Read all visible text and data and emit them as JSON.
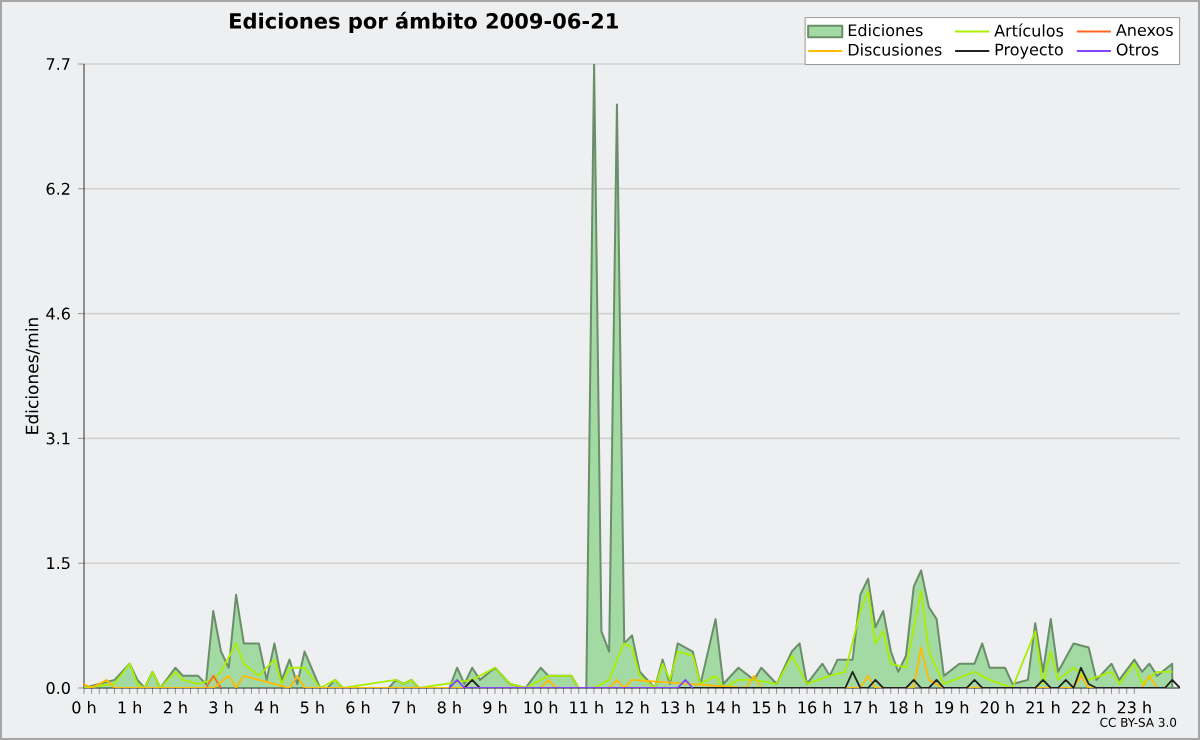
{
  "chart_data": {
    "type": "line",
    "title": "Ediciones por ámbito  2009-06-21",
    "ylabel": "Ediciones/min",
    "xlim": [
      0,
      24
    ],
    "ylim": [
      0,
      7.7
    ],
    "xticks": [
      {
        "value": 0,
        "label": "0 h"
      },
      {
        "value": 1,
        "label": "1 h"
      },
      {
        "value": 2,
        "label": "2 h"
      },
      {
        "value": 3,
        "label": "3 h"
      },
      {
        "value": 4,
        "label": "4 h"
      },
      {
        "value": 5,
        "label": "5 h"
      },
      {
        "value": 6,
        "label": "6 h"
      },
      {
        "value": 7,
        "label": "7 h"
      },
      {
        "value": 8,
        "label": "8 h"
      },
      {
        "value": 9,
        "label": "9 h"
      },
      {
        "value": 10,
        "label": "10 h"
      },
      {
        "value": 11,
        "label": "11 h"
      },
      {
        "value": 12,
        "label": "12 h"
      },
      {
        "value": 13,
        "label": "13 h"
      },
      {
        "value": 14,
        "label": "14 h"
      },
      {
        "value": 15,
        "label": "15 h"
      },
      {
        "value": 16,
        "label": "16 h"
      },
      {
        "value": 17,
        "label": "17 h"
      },
      {
        "value": 18,
        "label": "18 h"
      },
      {
        "value": 19,
        "label": "19 h"
      },
      {
        "value": 20,
        "label": "20 h"
      },
      {
        "value": 21,
        "label": "21 h"
      },
      {
        "value": 22,
        "label": "22 h"
      },
      {
        "value": 23,
        "label": "23 h"
      }
    ],
    "yticks": [
      {
        "value": 0,
        "label": "0.0"
      },
      {
        "value": 1.54,
        "label": "1.5"
      },
      {
        "value": 3.08,
        "label": "3.1"
      },
      {
        "value": 4.62,
        "label": "4.6"
      },
      {
        "value": 6.16,
        "label": "6.2"
      },
      7.7
    ],
    "grid": "y",
    "legend": "top right",
    "annotations": [
      "CC BY-SA 3.0"
    ],
    "series": [
      {
        "name": "Ediciones",
        "type": "area",
        "color": "#a3d9a3",
        "x": [
          0,
          0.33,
          0.67,
          1.0,
          1.17,
          1.33,
          1.5,
          1.67,
          2.0,
          2.17,
          2.5,
          2.67,
          2.83,
          3.0,
          3.17,
          3.33,
          3.5,
          3.83,
          4.0,
          4.17,
          4.33,
          4.5,
          4.67,
          4.83,
          5.17,
          5.33,
          5.5,
          5.67,
          6.67,
          6.83,
          7.0,
          7.17,
          7.33,
          8.0,
          8.17,
          8.33,
          8.5,
          8.67,
          9.0,
          9.33,
          9.67,
          10.0,
          10.17,
          10.67,
          10.83,
          11.0,
          11.17,
          11.33,
          11.5,
          11.67,
          11.83,
          12.0,
          12.17,
          12.5,
          12.67,
          12.83,
          13.0,
          13.33,
          13.5,
          13.83,
          14.0,
          14.33,
          14.67,
          14.83,
          15.17,
          15.5,
          15.67,
          15.83,
          16.17,
          16.33,
          16.5,
          16.83,
          17.0,
          17.17,
          17.33,
          17.5,
          17.67,
          17.83,
          18.0,
          18.17,
          18.33,
          18.5,
          18.67,
          18.83,
          19.17,
          19.5,
          19.67,
          19.83,
          20.17,
          20.33,
          20.67,
          20.83,
          21.0,
          21.17,
          21.33,
          21.67,
          22.0,
          22.17,
          22.5,
          22.67,
          23.0,
          23.17,
          23.33,
          23.5,
          23.83
        ],
        "values": [
          0,
          0.05,
          0.1,
          0.3,
          0.1,
          0,
          0.2,
          0,
          0.25,
          0.15,
          0.15,
          0.05,
          0.95,
          0.45,
          0.25,
          1.15,
          0.55,
          0.55,
          0.1,
          0.55,
          0.1,
          0.35,
          0.05,
          0.45,
          0,
          0,
          0.1,
          0,
          0,
          0.1,
          0.05,
          0.1,
          0,
          0,
          0.25,
          0.05,
          0.25,
          0.1,
          0.25,
          0.05,
          0,
          0.25,
          0.15,
          0.15,
          0,
          0,
          7.7,
          0.7,
          0.45,
          7.2,
          0.55,
          0.65,
          0.2,
          0,
          0.35,
          0.05,
          0.55,
          0.45,
          0.05,
          0.85,
          0.05,
          0.25,
          0.1,
          0.25,
          0.05,
          0.45,
          0.55,
          0.05,
          0.3,
          0.15,
          0.35,
          0.35,
          1.15,
          1.35,
          0.75,
          0.95,
          0.45,
          0.2,
          0.4,
          1.25,
          1.45,
          1.0,
          0.85,
          0.15,
          0.3,
          0.3,
          0.55,
          0.25,
          0.25,
          0.05,
          0.1,
          0.8,
          0.2,
          0.85,
          0.2,
          0.55,
          0.5,
          0.1,
          0.3,
          0.1,
          0.35,
          0.2,
          0.3,
          0.15,
          0.3
        ]
      },
      {
        "name": "Artículos",
        "color": "#aaee00",
        "x": [
          0,
          0.67,
          1.0,
          1.17,
          1.33,
          1.5,
          1.67,
          2.0,
          2.17,
          2.5,
          2.83,
          3.0,
          3.33,
          3.5,
          3.83,
          4.17,
          4.33,
          4.5,
          4.83,
          5.17,
          5.5,
          5.67,
          6.83,
          7.0,
          7.17,
          7.33,
          8.5,
          9.0,
          9.33,
          9.67,
          10.17,
          10.67,
          10.83,
          11.17,
          11.5,
          11.67,
          11.83,
          12.0,
          12.17,
          12.5,
          12.67,
          12.83,
          13.0,
          13.33,
          13.5,
          13.83,
          14.0,
          14.33,
          14.67,
          15.17,
          15.5,
          15.83,
          16.33,
          16.67,
          17.0,
          17.17,
          17.33,
          17.5,
          17.67,
          18.0,
          18.33,
          18.5,
          18.83,
          19.5,
          19.83,
          20.33,
          20.83,
          21.0,
          21.17,
          21.33,
          21.67,
          22.0,
          22.5,
          22.67,
          23.0,
          23.17,
          23.5,
          23.83
        ],
        "values": [
          0,
          0.05,
          0.3,
          0.05,
          0,
          0.2,
          0,
          0.2,
          0.1,
          0.05,
          0.1,
          0.2,
          0.55,
          0.3,
          0.15,
          0.35,
          0.05,
          0.25,
          0.25,
          0,
          0.1,
          0,
          0.1,
          0.05,
          0.1,
          0,
          0.1,
          0.25,
          0.05,
          0,
          0.15,
          0.15,
          0,
          0,
          0.1,
          0.35,
          0.55,
          0.5,
          0.15,
          0,
          0.3,
          0.1,
          0.45,
          0.4,
          0.05,
          0.15,
          0,
          0.1,
          0.1,
          0.05,
          0.4,
          0.05,
          0.15,
          0.2,
          0.95,
          1.2,
          0.55,
          0.7,
          0.3,
          0.25,
          1.2,
          0.45,
          0.05,
          0.2,
          0.1,
          0,
          0.7,
          0.05,
          0.45,
          0.1,
          0.25,
          0.1,
          0.2,
          0.05,
          0.3,
          0.05,
          0.2,
          0.2
        ]
      },
      {
        "name": "Anexos",
        "color": "#ff6622",
        "x": [
          2.67,
          2.83,
          3.0
        ],
        "values": [
          0,
          0.15,
          0
        ]
      },
      {
        "name": "Discusiones",
        "color": "#ffbb00",
        "x": [
          0,
          0.17,
          0.5,
          0.67,
          2.83,
          3.17,
          3.33,
          3.5,
          4.5,
          4.67,
          4.83,
          10.0,
          10.17,
          10.33,
          11.5,
          11.67,
          11.83,
          12.0,
          14.5,
          14.67,
          14.83,
          17.0,
          17.17,
          17.33,
          18.17,
          18.33,
          18.5,
          18.83,
          21.67,
          21.83,
          22.0,
          23.17,
          23.33,
          23.5
        ],
        "values": [
          0.05,
          0,
          0.1,
          0,
          0,
          0.15,
          0,
          0.15,
          0,
          0.15,
          0,
          0,
          0.1,
          0,
          0,
          0.1,
          0,
          0.1,
          0,
          0.15,
          0,
          0,
          0.15,
          0,
          0,
          0.5,
          0.1,
          0,
          0,
          0.15,
          0,
          0,
          0.15,
          0
        ]
      },
      {
        "name": "Proyecto",
        "color": "#222222",
        "x": [
          8.33,
          8.5,
          8.67,
          16.67,
          16.83,
          17.0,
          17.17,
          17.33,
          17.5,
          18.0,
          18.17,
          18.33,
          18.5,
          18.67,
          18.83,
          19.33,
          19.5,
          19.67,
          20.83,
          21.0,
          21.17,
          21.33,
          21.5,
          21.67,
          21.83,
          22.0,
          22.17,
          23.67,
          23.83,
          24.0
        ],
        "values": [
          0,
          0.1,
          0,
          0,
          0.2,
          0,
          0,
          0.1,
          0,
          0,
          0.1,
          0,
          0,
          0.1,
          0,
          0,
          0.1,
          0,
          0,
          0.1,
          0,
          0,
          0.1,
          0,
          0.25,
          0.05,
          0,
          0,
          0.1,
          0
        ]
      },
      {
        "name": "Otros",
        "color": "#8844ff",
        "x": [
          8.0,
          8.17,
          8.33,
          13.0,
          13.17,
          13.33
        ],
        "values": [
          0,
          0.1,
          0,
          0,
          0.1,
          0
        ]
      }
    ]
  }
}
